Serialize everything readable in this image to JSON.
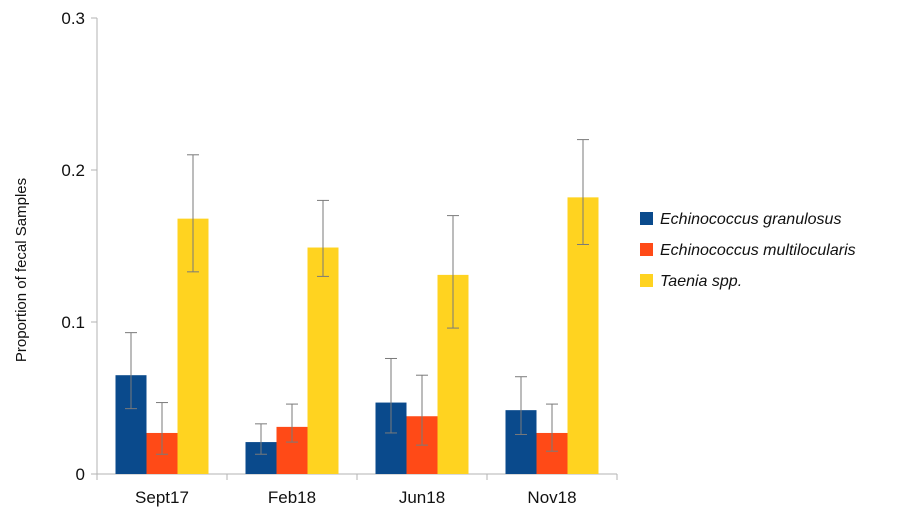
{
  "chart_data": {
    "type": "bar",
    "title": "",
    "xlabel": "",
    "ylabel": "Proportion of fecal Samples",
    "ylim": [
      0,
      0.3
    ],
    "yticks": [
      0,
      0.1,
      0.2,
      0.3
    ],
    "ytick_labels": [
      "0",
      "0.1",
      "0.2",
      "0.3"
    ],
    "categories": [
      "Sept17",
      "Feb18",
      "Jun18",
      "Nov18"
    ],
    "grid": false,
    "error_bars": true,
    "legend_position": "right",
    "series": [
      {
        "name": "Echinococcus granulosus",
        "color": "#0a4a8c",
        "values": [
          0.065,
          0.021,
          0.047,
          0.042
        ],
        "err_low": [
          0.043,
          0.013,
          0.027,
          0.026
        ],
        "err_high": [
          0.093,
          0.033,
          0.076,
          0.064
        ]
      },
      {
        "name": "Echinococcus multilocularis",
        "color": "#ff4a17",
        "values": [
          0.027,
          0.031,
          0.038,
          0.027
        ],
        "err_low": [
          0.013,
          0.021,
          0.019,
          0.015
        ],
        "err_high": [
          0.047,
          0.046,
          0.065,
          0.046
        ]
      },
      {
        "name": "Taenia spp.",
        "color": "#ffd320",
        "values": [
          0.168,
          0.149,
          0.131,
          0.182
        ],
        "err_low": [
          0.133,
          0.13,
          0.096,
          0.151
        ],
        "err_high": [
          0.21,
          0.18,
          0.17,
          0.22
        ]
      }
    ]
  }
}
